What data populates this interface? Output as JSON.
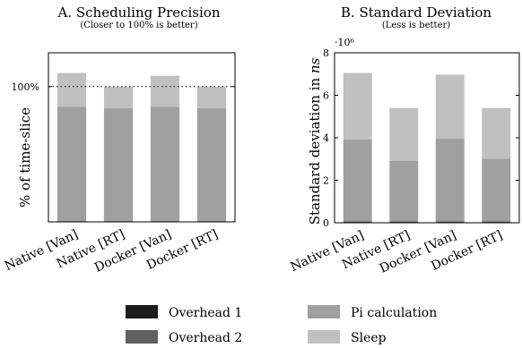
{
  "colors": {
    "overhead1": "#1c1c1c",
    "overhead2": "#606060",
    "pi": "#a0a0a0",
    "sleep": "#c0c0c0"
  },
  "legend": [
    {
      "key": "overhead1",
      "label": "Overhead 1"
    },
    {
      "key": "overhead2",
      "label": "Overhead 2"
    },
    {
      "key": "pi",
      "label": "Pi calculation"
    },
    {
      "key": "sleep",
      "label": "Sleep"
    }
  ],
  "chart_data": [
    {
      "type": "bar",
      "stacked": true,
      "title": "A. Scheduling Precision",
      "subtitle": "(Closer to 100% is better)",
      "ylabel": "% of time-slice",
      "categories": [
        "Native [Van]",
        "Native [RT]",
        "Docker [Van]",
        "Docker [RT]"
      ],
      "ylim": [
        0,
        125
      ],
      "yticks": [
        100
      ],
      "ytick_labels": [
        "100%"
      ],
      "reference_line": 100,
      "series": [
        {
          "name": "Overhead 1",
          "key": "overhead1",
          "values": [
            0,
            0,
            0,
            0
          ]
        },
        {
          "name": "Overhead 2",
          "key": "overhead2",
          "values": [
            0,
            0,
            0,
            0
          ]
        },
        {
          "name": "Pi calculation",
          "key": "pi",
          "values": [
            85,
            84,
            85,
            84
          ]
        },
        {
          "name": "Sleep",
          "key": "sleep",
          "values": [
            25,
            16,
            23,
            16
          ]
        }
      ]
    },
    {
      "type": "bar",
      "stacked": true,
      "title": "B. Standard Deviation",
      "subtitle": "(Less is better)",
      "ylabel": "Standard deviation in ns",
      "scale_label": "·10⁶",
      "categories": [
        "Native [Van]",
        "Native [RT]",
        "Docker [Van]",
        "Docker [RT]"
      ],
      "ylim": [
        0,
        8
      ],
      "yticks": [
        0,
        2,
        4,
        6,
        8
      ],
      "ytick_labels": [
        "0",
        "2",
        "4",
        "6",
        "8"
      ],
      "series": [
        {
          "name": "Overhead 1",
          "key": "overhead1",
          "values": [
            0.02,
            0.02,
            0.02,
            0.02
          ]
        },
        {
          "name": "Overhead 2",
          "key": "overhead2",
          "values": [
            0.05,
            0.05,
            0.05,
            0.05
          ]
        },
        {
          "name": "Pi calculation",
          "key": "pi",
          "values": [
            3.85,
            2.85,
            3.9,
            2.95
          ]
        },
        {
          "name": "Sleep",
          "key": "sleep",
          "values": [
            3.13,
            2.48,
            3.0,
            2.38
          ]
        }
      ]
    }
  ]
}
